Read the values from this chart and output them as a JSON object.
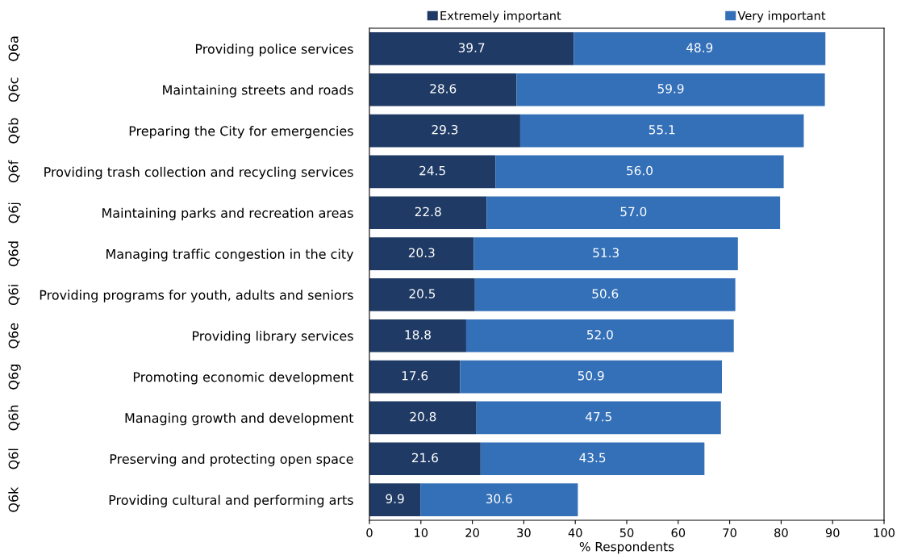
{
  "chart_data": {
    "type": "bar",
    "orientation": "horizontal",
    "stacked": true,
    "xlabel": "% Respondents",
    "categories": [
      "Providing police services",
      "Maintaining streets and roads",
      "Preparing the City for emergencies",
      "Providing trash collection and recycling services",
      "Maintaining parks and recreation areas",
      "Managing traffic congestion in the city",
      "Providing programs for youth, adults and seniors",
      "Providing library services",
      "Promoting economic development",
      "Managing growth and development",
      "Preserving and protecting open space",
      "Providing cultural and performing arts"
    ],
    "annotations": [
      "Q6a",
      "Q6c",
      "Q6b",
      "Q6f",
      "Q6j",
      "Q6d",
      "Q6i",
      "Q6e",
      "Q6g",
      "Q6h",
      "Q6l",
      "Q6k"
    ],
    "series": [
      {
        "name": "Extremely important",
        "color": "#1f3a64",
        "values": [
          39.7,
          28.6,
          29.3,
          24.5,
          22.8,
          20.3,
          20.5,
          18.8,
          17.6,
          20.8,
          21.6,
          9.9
        ],
        "value_labels": [
          "39.7",
          "28.6",
          "29.3",
          "24.5",
          "22.8",
          "20.3",
          "20.5",
          "18.8",
          "17.6",
          "20.8",
          "21.6",
          "9.9"
        ]
      },
      {
        "name": "Very important",
        "color": "#3470b8",
        "values": [
          48.9,
          59.9,
          55.1,
          56.0,
          57.0,
          51.3,
          50.6,
          52.0,
          50.9,
          47.5,
          43.5,
          30.6
        ],
        "value_labels": [
          "48.9",
          "59.9",
          "55.1",
          "56.0",
          "57.0",
          "51.3",
          "50.6",
          "52.0",
          "50.9",
          "47.5",
          "43.5",
          "30.6"
        ]
      }
    ],
    "xlim": [
      0,
      100
    ],
    "xticks": [
      0,
      10,
      20,
      30,
      40,
      50,
      60,
      70,
      80,
      90,
      100
    ],
    "grid": false,
    "legend": "top"
  }
}
